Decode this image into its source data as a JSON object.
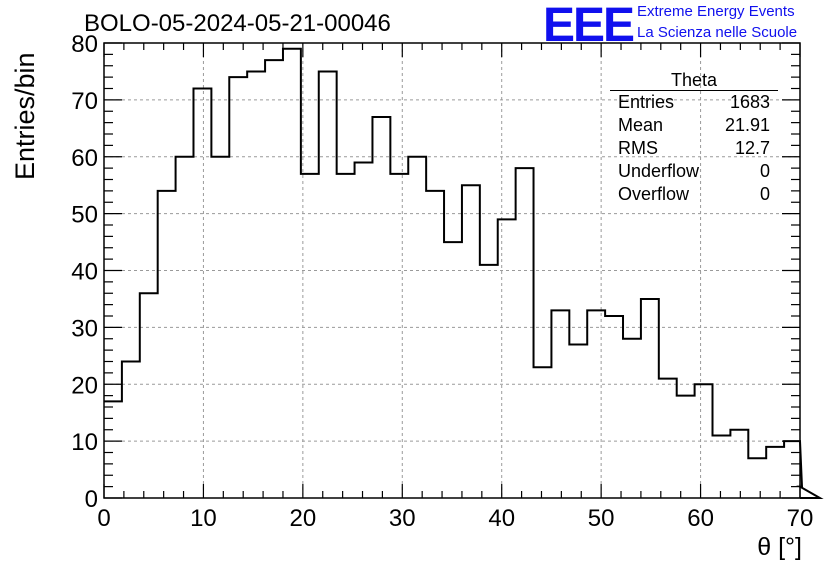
{
  "header": {
    "title": "BOLO-05-2024-05-21-00046",
    "logo_text": "EEE",
    "logo_line1": "Extreme Energy Events",
    "logo_line2": "La Scienza nelle Scuole"
  },
  "stats": {
    "title": "Theta",
    "rows": [
      {
        "label": "Entries",
        "value": "1683"
      },
      {
        "label": "Mean",
        "value": "21.91"
      },
      {
        "label": "RMS",
        "value": "12.7"
      },
      {
        "label": "Underflow",
        "value": "0"
      },
      {
        "label": "Overflow",
        "value": "0"
      }
    ]
  },
  "colors": {
    "line": "#000000",
    "grid": "#9a9a9a",
    "logo": "#1010ee"
  },
  "chart_data": {
    "type": "histogram",
    "title": "BOLO-05-2024-05-21-00046",
    "xlabel": "θ [°]",
    "ylabel": "Entries/bin",
    "xlim": [
      0,
      70
    ],
    "ylim": [
      0,
      80
    ],
    "bin_width": 1.8,
    "x_ticks": [
      0,
      10,
      20,
      30,
      40,
      50,
      60,
      70
    ],
    "y_ticks": [
      0,
      10,
      20,
      30,
      40,
      50,
      60,
      70,
      80
    ],
    "grid": true,
    "bin_edges_start": 0,
    "values": [
      17,
      24,
      36,
      54,
      60,
      72,
      60,
      74,
      75,
      77,
      79,
      57,
      75,
      57,
      59,
      67,
      57,
      60,
      54,
      45,
      55,
      41,
      49,
      58,
      23,
      33,
      27,
      33,
      32,
      28,
      35,
      21,
      18,
      20,
      11,
      12,
      7,
      9,
      10,
      2,
      0
    ]
  }
}
